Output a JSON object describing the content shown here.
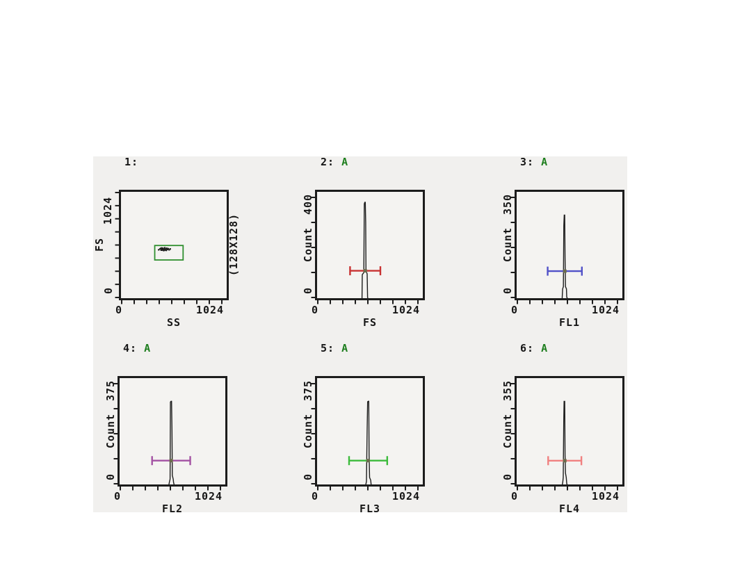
{
  "page": {
    "background": "#ffffff",
    "panel_background": "#f1f0ee",
    "frame_color": "#1c1c1c",
    "plot_fill": "#f4f3f1",
    "text_color": "#161616",
    "sample_accent": "#1e7e1e",
    "marker_handle_color": "#6b6b4c"
  },
  "chart_data": [
    {
      "index": "1:",
      "sample": "",
      "type": "scatter",
      "xlabel": "SS",
      "ylabel": "FS",
      "xlim": [
        0,
        1024
      ],
      "ylim": [
        0,
        1024
      ],
      "x_tick_labels": [
        "0",
        "1024"
      ],
      "y_tick_labels": [
        "0",
        "1024"
      ],
      "x_tick_count": 9,
      "y_tick_count": 9,
      "resolution_note": "(128X128)",
      "gate": {
        "name": "A",
        "color": "#2f8f2f",
        "x_range": [
          338,
          628
        ],
        "y_range": [
          390,
          535
        ]
      },
      "cluster_points": [
        [
          378,
          492
        ],
        [
          392,
          500
        ],
        [
          404,
          488
        ],
        [
          412,
          498
        ],
        [
          420,
          507
        ],
        [
          428,
          494
        ],
        [
          436,
          502
        ],
        [
          444,
          490
        ],
        [
          452,
          500
        ],
        [
          460,
          508
        ],
        [
          468,
          495
        ],
        [
          476,
          503
        ],
        [
          486,
          492
        ],
        [
          496,
          500
        ],
        [
          408,
          510
        ],
        [
          440,
          512
        ],
        [
          456,
          486
        ],
        [
          430,
          484
        ],
        [
          398,
          505
        ],
        [
          414,
          489
        ]
      ]
    },
    {
      "index": "2:",
      "sample": "A",
      "type": "histogram",
      "xlabel": "FS",
      "ylabel": "Count",
      "xlim": [
        0,
        1024
      ],
      "ylim": [
        0,
        400
      ],
      "x_tick_labels": [
        "0",
        "1024"
      ],
      "y_tick_labels": [
        "0",
        "400"
      ],
      "x_tick_count": 9,
      "y_tick_count": 5,
      "peak": {
        "x": 485,
        "count": 378
      },
      "outline": [
        [
          0,
          0
        ],
        [
          452,
          0
        ],
        [
          455,
          95
        ],
        [
          471,
          103
        ],
        [
          476,
          372
        ],
        [
          481,
          378
        ],
        [
          486,
          378
        ],
        [
          490,
          300
        ],
        [
          493,
          110
        ],
        [
          505,
          98
        ],
        [
          509,
          6
        ],
        [
          514,
          0
        ],
        [
          1024,
          0
        ]
      ],
      "marker": {
        "color": "#c83232",
        "x_range": [
          330,
          640
        ],
        "y": 110
      }
    },
    {
      "index": "3:",
      "sample": "A",
      "type": "histogram",
      "xlabel": "FL1",
      "ylabel": "Count",
      "xlim": [
        0,
        1024
      ],
      "ylim": [
        0,
        350
      ],
      "x_tick_labels": [
        "0",
        "1024"
      ],
      "y_tick_labels": [
        "0",
        "350"
      ],
      "x_tick_count": 9,
      "y_tick_count": 5,
      "peak": {
        "x": 483,
        "count": 287
      },
      "outline": [
        [
          0,
          0
        ],
        [
          458,
          0
        ],
        [
          463,
          34
        ],
        [
          471,
          42
        ],
        [
          475,
          250
        ],
        [
          479,
          287
        ],
        [
          484,
          287
        ],
        [
          488,
          140
        ],
        [
          492,
          42
        ],
        [
          502,
          34
        ],
        [
          505,
          6
        ],
        [
          514,
          0
        ],
        [
          1024,
          0
        ]
      ],
      "marker": {
        "color": "#5050c8",
        "x_range": [
          310,
          660
        ],
        "y": 95
      }
    },
    {
      "index": "4:",
      "sample": "A",
      "type": "histogram",
      "xlabel": "FL2",
      "ylabel": "Count",
      "xlim": [
        0,
        1024
      ],
      "ylim": [
        0,
        375
      ],
      "x_tick_labels": [
        "0",
        "1024"
      ],
      "y_tick_labels": [
        "0",
        "375"
      ],
      "x_tick_count": 9,
      "y_tick_count": 5,
      "peak": {
        "x": 520,
        "count": 308
      },
      "outline": [
        [
          0,
          0
        ],
        [
          496,
          0
        ],
        [
          501,
          10
        ],
        [
          509,
          22
        ],
        [
          513,
          305
        ],
        [
          519,
          308
        ],
        [
          524,
          308
        ],
        [
          528,
          205
        ],
        [
          532,
          36
        ],
        [
          541,
          22
        ],
        [
          545,
          10
        ],
        [
          552,
          0
        ],
        [
          1024,
          0
        ]
      ],
      "marker": {
        "color": "#a352a3",
        "x_range": [
          325,
          715
        ],
        "y": 90
      }
    },
    {
      "index": "5:",
      "sample": "A",
      "type": "histogram",
      "xlabel": "FL3",
      "ylabel": "Count",
      "xlim": [
        0,
        1024
      ],
      "ylim": [
        0,
        375
      ],
      "x_tick_labels": [
        "0",
        "1024"
      ],
      "y_tick_labels": [
        "0",
        "375"
      ],
      "x_tick_count": 9,
      "y_tick_count": 5,
      "peak": {
        "x": 518,
        "count": 308
      },
      "outline": [
        [
          0,
          0
        ],
        [
          490,
          0
        ],
        [
          498,
          14
        ],
        [
          505,
          205
        ],
        [
          510,
          306
        ],
        [
          516,
          308
        ],
        [
          521,
          308
        ],
        [
          525,
          110
        ],
        [
          530,
          28
        ],
        [
          541,
          18
        ],
        [
          546,
          0
        ],
        [
          1024,
          0
        ]
      ],
      "marker": {
        "color": "#3cbb3c",
        "x_range": [
          320,
          710
        ],
        "y": 90
      }
    },
    {
      "index": "6:",
      "sample": "A",
      "type": "histogram",
      "xlabel": "FL4",
      "ylabel": "Count",
      "xlim": [
        0,
        1024
      ],
      "ylim": [
        0,
        355
      ],
      "x_tick_labels": [
        "0",
        "1024"
      ],
      "y_tick_labels": [
        "0",
        "355"
      ],
      "x_tick_count": 9,
      "y_tick_count": 5,
      "peak": {
        "x": 483,
        "count": 291
      },
      "outline": [
        [
          0,
          0
        ],
        [
          459,
          0
        ],
        [
          464,
          10
        ],
        [
          469,
          27
        ],
        [
          474,
          218
        ],
        [
          478,
          291
        ],
        [
          484,
          291
        ],
        [
          488,
          104
        ],
        [
          492,
          42
        ],
        [
          500,
          27
        ],
        [
          505,
          6
        ],
        [
          510,
          0
        ],
        [
          1024,
          0
        ]
      ],
      "marker": {
        "color": "#f08080",
        "x_range": [
          315,
          655
        ],
        "y": 85
      }
    }
  ]
}
